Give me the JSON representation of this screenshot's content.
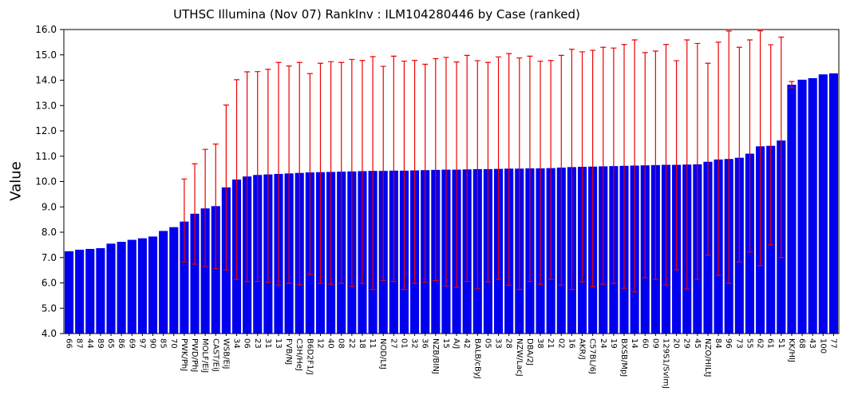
{
  "figure": {
    "background": "#ffffff",
    "text_color": "#000000"
  },
  "chart_data": {
    "type": "bar",
    "title": "UTHSC Illumina (Nov 07) RankInv : ILM104280446 by Case (ranked)",
    "xlabel": "",
    "ylabel": "Value",
    "ylim": [
      4.0,
      16.0
    ],
    "yticks": [
      "4.0",
      "5.0",
      "6.0",
      "7.0",
      "8.0",
      "9.0",
      "10.0",
      "11.0",
      "12.0",
      "13.0",
      "14.0",
      "15.0",
      "16.0"
    ],
    "grid": false,
    "legend_position": "none",
    "bar_color": "#0000ee",
    "error_bar_color": "#ee0000",
    "axis_color": "#000000",
    "bars": [
      {
        "label": "66",
        "value": 7.25
      },
      {
        "label": "87",
        "value": 7.31
      },
      {
        "label": "44",
        "value": 7.34
      },
      {
        "label": "89",
        "value": 7.37
      },
      {
        "label": "65",
        "value": 7.55
      },
      {
        "label": "86",
        "value": 7.62
      },
      {
        "label": "69",
        "value": 7.7
      },
      {
        "label": "97",
        "value": 7.76
      },
      {
        "label": "90",
        "value": 7.83
      },
      {
        "label": "85",
        "value": 8.05
      },
      {
        "label": "70",
        "value": 8.2
      },
      {
        "label": "PWK/PhJ",
        "value": 8.42,
        "err_lo": 6.82,
        "err_hi": 10.1
      },
      {
        "label": "PWD/PhJ",
        "value": 8.73,
        "err_lo": 6.74,
        "err_hi": 10.7
      },
      {
        "label": "MOLF/EiJ",
        "value": 8.94,
        "err_lo": 6.64,
        "err_hi": 11.27
      },
      {
        "label": "CAST/EiJ",
        "value": 9.03,
        "err_lo": 6.56,
        "err_hi": 11.48
      },
      {
        "label": "WSB/EiJ",
        "value": 9.77,
        "err_lo": 6.51,
        "err_hi": 13.02
      },
      {
        "label": "34",
        "value": 10.08,
        "err_lo": 6.14,
        "err_hi": 14.02
      },
      {
        "label": "06",
        "value": 10.2,
        "err_lo": 6.05,
        "err_hi": 14.33
      },
      {
        "label": "23",
        "value": 10.26,
        "err_lo": 6.06,
        "err_hi": 14.34
      },
      {
        "label": "31",
        "value": 10.28,
        "err_lo": 6.02,
        "err_hi": 14.43
      },
      {
        "label": "13",
        "value": 10.3,
        "err_lo": 5.91,
        "err_hi": 14.7
      },
      {
        "label": "FVB/NJ",
        "value": 10.32,
        "err_lo": 5.98,
        "err_hi": 14.56
      },
      {
        "label": "C3H/HeJ",
        "value": 10.34,
        "err_lo": 5.93,
        "err_hi": 14.7
      },
      {
        "label": "B6D2F1/J",
        "value": 10.36,
        "err_lo": 6.33,
        "err_hi": 14.26
      },
      {
        "label": "12",
        "value": 10.37,
        "err_lo": 5.98,
        "err_hi": 14.67
      },
      {
        "label": "40",
        "value": 10.38,
        "err_lo": 5.95,
        "err_hi": 14.73
      },
      {
        "label": "08",
        "value": 10.39,
        "err_lo": 5.98,
        "err_hi": 14.7
      },
      {
        "label": "22",
        "value": 10.4,
        "err_lo": 5.85,
        "err_hi": 14.82
      },
      {
        "label": "18",
        "value": 10.41,
        "err_lo": 5.98,
        "err_hi": 14.78
      },
      {
        "label": "11",
        "value": 10.42,
        "err_lo": 5.74,
        "err_hi": 14.93
      },
      {
        "label": "NOD/LtJ",
        "value": 10.42,
        "err_lo": 6.09,
        "err_hi": 14.55
      },
      {
        "label": "27",
        "value": 10.43,
        "err_lo": 6.06,
        "err_hi": 14.95
      },
      {
        "label": "01",
        "value": 10.43,
        "err_lo": 5.74,
        "err_hi": 14.75
      },
      {
        "label": "32",
        "value": 10.44,
        "err_lo": 5.98,
        "err_hi": 14.78
      },
      {
        "label": "36",
        "value": 10.45,
        "err_lo": 6.02,
        "err_hi": 14.63
      },
      {
        "label": "NZB/BINJ",
        "value": 10.46,
        "err_lo": 6.09,
        "err_hi": 14.85
      },
      {
        "label": "15",
        "value": 10.47,
        "err_lo": 5.88,
        "err_hi": 14.9
      },
      {
        "label": "A/J",
        "value": 10.47,
        "err_lo": 5.83,
        "err_hi": 14.72
      },
      {
        "label": "42",
        "value": 10.48,
        "err_lo": 6.06,
        "err_hi": 14.98
      },
      {
        "label": "BALB/cByJ",
        "value": 10.49,
        "err_lo": 5.77,
        "err_hi": 14.77
      },
      {
        "label": "05",
        "value": 10.49,
        "err_lo": 6.04,
        "err_hi": 14.7
      },
      {
        "label": "33",
        "value": 10.5,
        "err_lo": 6.14,
        "err_hi": 14.92
      },
      {
        "label": "28",
        "value": 10.51,
        "err_lo": 5.91,
        "err_hi": 15.05
      },
      {
        "label": "NZW/LacJ",
        "value": 10.51,
        "err_lo": 5.74,
        "err_hi": 14.88
      },
      {
        "label": "DBA/2J",
        "value": 10.52,
        "err_lo": 6.06,
        "err_hi": 14.95
      },
      {
        "label": "38",
        "value": 10.52,
        "err_lo": 5.95,
        "err_hi": 14.75
      },
      {
        "label": "21",
        "value": 10.53,
        "err_lo": 6.14,
        "err_hi": 14.78
      },
      {
        "label": "02",
        "value": 10.55,
        "err_lo": 5.91,
        "err_hi": 14.98
      },
      {
        "label": "16",
        "value": 10.57,
        "err_lo": 5.74,
        "err_hi": 15.22
      },
      {
        "label": "AKR/J",
        "value": 10.58,
        "err_lo": 6.04,
        "err_hi": 15.12
      },
      {
        "label": "C57BL/6J",
        "value": 10.59,
        "err_lo": 5.85,
        "err_hi": 15.18
      },
      {
        "label": "24",
        "value": 10.6,
        "err_lo": 5.95,
        "err_hi": 15.3
      },
      {
        "label": "19",
        "value": 10.61,
        "err_lo": 5.98,
        "err_hi": 15.27
      },
      {
        "label": "BXSB/MpJ",
        "value": 10.62,
        "err_lo": 5.79,
        "err_hi": 15.41
      },
      {
        "label": "14",
        "value": 10.63,
        "err_lo": 5.64,
        "err_hi": 15.59
      },
      {
        "label": "60",
        "value": 10.64,
        "err_lo": 6.2,
        "err_hi": 15.09
      },
      {
        "label": "09",
        "value": 10.65,
        "err_lo": 6.14,
        "err_hi": 15.15
      },
      {
        "label": "129S1/SvImJ",
        "value": 10.66,
        "err_lo": 5.92,
        "err_hi": 15.41
      },
      {
        "label": "20",
        "value": 10.66,
        "err_lo": 6.52,
        "err_hi": 14.77
      },
      {
        "label": "29",
        "value": 10.67,
        "err_lo": 5.76,
        "err_hi": 15.59
      },
      {
        "label": "45",
        "value": 10.68,
        "err_lo": 6.14,
        "err_hi": 15.45
      },
      {
        "label": "NZO/HILtJ",
        "value": 10.78,
        "err_lo": 7.09,
        "err_hi": 14.67
      },
      {
        "label": "84",
        "value": 10.87,
        "err_lo": 6.3,
        "err_hi": 15.5
      },
      {
        "label": "96",
        "value": 10.89,
        "err_lo": 5.98,
        "err_hi": 15.94
      },
      {
        "label": "73",
        "value": 10.94,
        "err_lo": 6.83,
        "err_hi": 15.3
      },
      {
        "label": "55",
        "value": 11.1,
        "err_lo": 7.21,
        "err_hi": 15.59
      },
      {
        "label": "62",
        "value": 11.39,
        "err_lo": 6.68,
        "err_hi": 15.95
      },
      {
        "label": "61",
        "value": 11.41,
        "err_lo": 7.5,
        "err_hi": 15.4
      },
      {
        "label": "51",
        "value": 11.62,
        "err_lo": 7.0,
        "err_hi": 15.7
      },
      {
        "label": "KK/HIJ",
        "value": 13.82,
        "err_lo": 13.7,
        "err_hi": 13.95
      },
      {
        "label": "68",
        "value": 14.02
      },
      {
        "label": "43",
        "value": 14.08
      },
      {
        "label": "100",
        "value": 14.23
      },
      {
        "label": "77",
        "value": 14.27
      }
    ]
  }
}
